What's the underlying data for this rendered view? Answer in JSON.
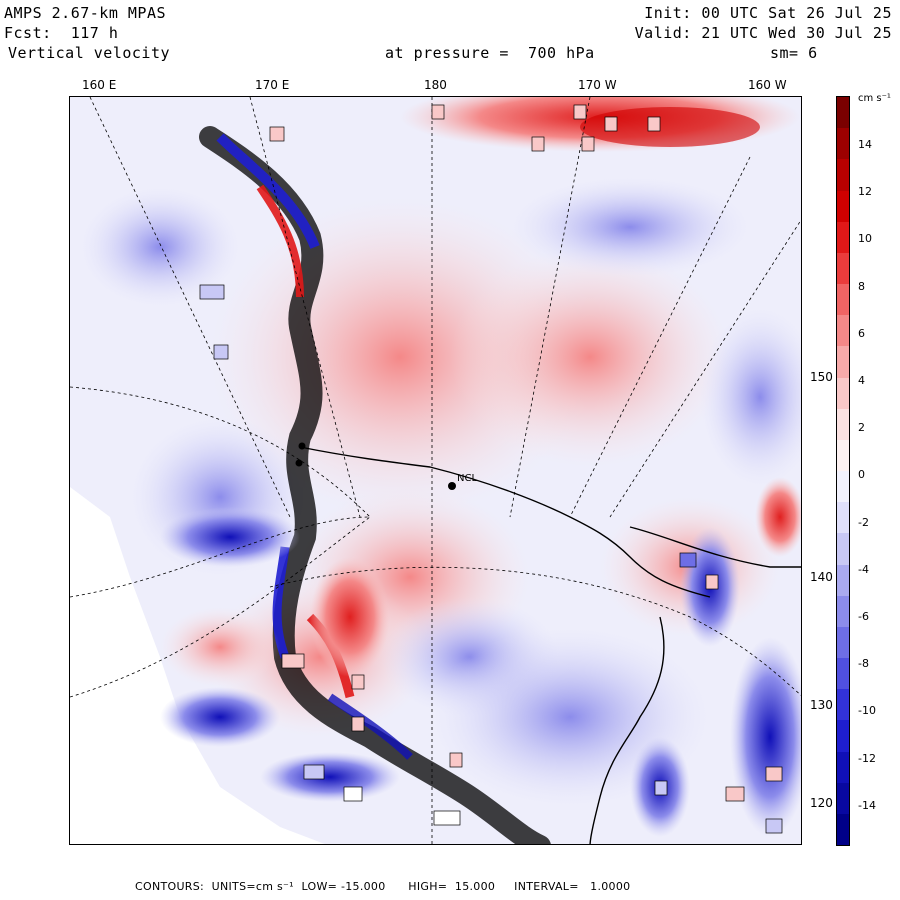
{
  "header": {
    "model": "AMPS 2.67-km MPAS",
    "init": "Init: 00 UTC Sat 26 Jul 25",
    "forecast": "Fcst:  117 h",
    "valid": "Valid: 21 UTC Wed 30 Jul 25",
    "variable": "Vertical velocity",
    "level": "at pressure =  700 hPa",
    "smooth": "sm= 6"
  },
  "top_longitudes": [
    "160 E",
    "170 E",
    "180",
    "170 W",
    "160 W"
  ],
  "right_longitudes": [
    "150 W",
    "140 W",
    "130 W",
    "120 W"
  ],
  "colorbar": {
    "units": "cm s⁻¹",
    "labels": [
      "14",
      "12",
      "10",
      "8",
      "6",
      "4",
      "2",
      "0",
      "-2",
      "-4",
      "-6",
      "-8",
      "-10",
      "-12",
      "-14"
    ],
    "colors": [
      "#7a0000",
      "#9c0000",
      "#b80000",
      "#d00000",
      "#e01818",
      "#ea3c3c",
      "#f06464",
      "#f48888",
      "#f7aaaa",
      "#f9c8c8",
      "#fbe2e2",
      "#fdf2f2",
      "#f2f2fd",
      "#e0e0fb",
      "#c8c8f5",
      "#aaaaf0",
      "#8c8ceb",
      "#6e6ee6",
      "#5050e0",
      "#3232d8",
      "#1e1ed0",
      "#1010b8",
      "#0808a0",
      "#000088"
    ]
  },
  "station_label": "NCL",
  "footer": {
    "contours": "CONTOURS:  UNITS=cm s⁻¹  LOW= -15.000      HIGH=  15.000     INTERVAL=   1.0000"
  }
}
